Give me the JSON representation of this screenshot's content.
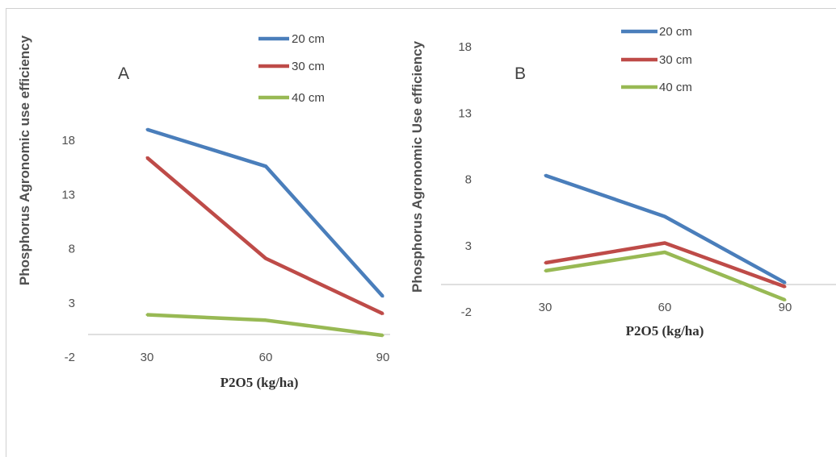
{
  "chart_data": [
    {
      "type": "line",
      "panel_label": "A",
      "title": "",
      "xlabel": "P2O5 (kg/ha)",
      "ylabel": "Phosphorus Agronomic use efficiency",
      "categories": [
        "30",
        "60",
        "90"
      ],
      "yticks": [
        "-2",
        "3",
        "8",
        "13",
        "18"
      ],
      "ylim": [
        -2,
        18
      ],
      "grid": false,
      "legend_position": "top-right",
      "series": [
        {
          "name": "20 cm",
          "color": "#4A7EBB",
          "values": [
            19.0,
            15.6,
            3.6
          ]
        },
        {
          "name": "30 cm",
          "color": "#BE4B48",
          "values": [
            16.4,
            7.1,
            2.0
          ]
        },
        {
          "name": "40 cm",
          "color": "#98B954",
          "values": [
            1.9,
            1.4,
            0.0
          ]
        }
      ]
    },
    {
      "type": "line",
      "panel_label": "B",
      "title": "",
      "xlabel": "P2O5 (kg/ha)",
      "ylabel": "Phosphorus Agronomic Use efficiency",
      "categories": [
        "30",
        "60",
        "90"
      ],
      "yticks": [
        "-2",
        "3",
        "8",
        "13",
        "18"
      ],
      "ylim": [
        -2,
        18
      ],
      "grid": false,
      "legend_position": "top-right",
      "series": [
        {
          "name": "20 cm",
          "color": "#4A7EBB",
          "values": [
            8.3,
            5.2,
            0.2
          ]
        },
        {
          "name": "30 cm",
          "color": "#BE4B48",
          "values": [
            1.7,
            3.2,
            -0.1
          ]
        },
        {
          "name": "40 cm",
          "color": "#98B954",
          "values": [
            1.1,
            2.5,
            -1.1
          ]
        }
      ]
    }
  ]
}
